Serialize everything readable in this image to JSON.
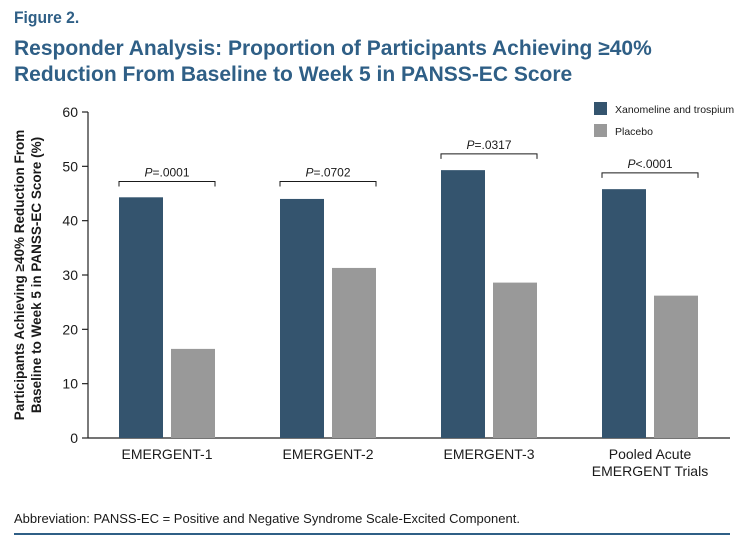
{
  "figure_label": "Figure 2.",
  "title_lines": [
    "Responder Analysis: Proportion of Participants Achieving ≥40%",
    "Reduction From Baseline to Week 5 in PANSS-EC Score"
  ],
  "footnote": "Abbreviation: PANSS-EC = Positive and Negative Syndrome Scale-Excited Component.",
  "colors": {
    "title": "#2f5f86",
    "series_1": "#34546e",
    "series_2": "#999999",
    "axis": "#222222"
  },
  "chart_data": {
    "type": "bar",
    "ylabel_lines": [
      "Participants Achieving ≥40% Reduction From",
      "Baseline to Week 5 in PANSS-EC Score (%)"
    ],
    "xlabel": "",
    "ylim": [
      0,
      60
    ],
    "yticks": [
      0,
      10,
      20,
      30,
      40,
      50,
      60
    ],
    "grid": false,
    "legend_position": "top-right",
    "categories": [
      [
        "EMERGENT-1"
      ],
      [
        "EMERGENT-2"
      ],
      [
        "EMERGENT-3"
      ],
      [
        "Pooled Acute",
        "EMERGENT Trials"
      ]
    ],
    "series": [
      {
        "name": "Xanomeline and trospium",
        "values": [
          44.3,
          44.0,
          49.3,
          45.8
        ]
      },
      {
        "name": "Placebo",
        "values": [
          16.4,
          31.3,
          28.6,
          26.2
        ]
      }
    ],
    "annotations": [
      {
        "prefix": "P",
        "text": "=.0001",
        "level": 47.2
      },
      {
        "prefix": "P",
        "text": "=.0702",
        "level": 47.2
      },
      {
        "prefix": "P",
        "text": "=.0317",
        "level": 52.3
      },
      {
        "prefix": "P",
        "text": "<.0001",
        "level": 48.8
      }
    ]
  }
}
